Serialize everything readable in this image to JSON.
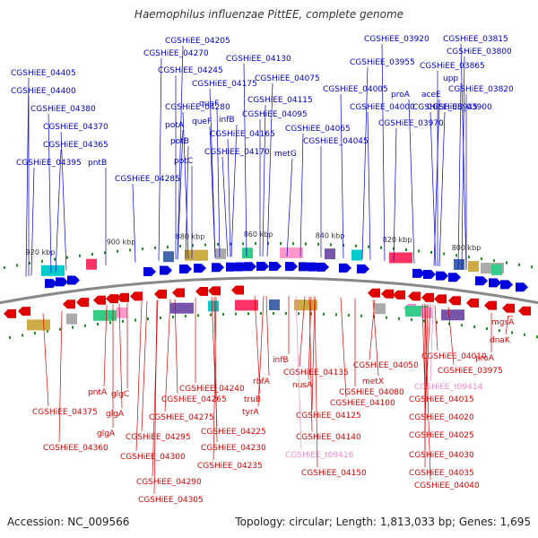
{
  "title": "Haemophilus influenzae PittEE, complete genome",
  "footer": {
    "accession": "Accession: NC_009566",
    "summary": "Topology: circular; Length: 1,813,033 bp; Genes: 1,695"
  },
  "colors": {
    "forward": "#0000dd",
    "reverse": "#e00000",
    "trna": "#ee88cc",
    "backbone": "#888888",
    "ticks": "#228822"
  },
  "scale_labels": [
    "920 kbp",
    "900 kbp",
    "880 kbp",
    "860 kbp",
    "840 kbp",
    "820 kbp",
    "800 kbp"
  ],
  "forward_labels": [
    "CGSHiEE_04205",
    "CGSHiEE_04270",
    "CGSHiEE_04245",
    "CGSHiEE_04130",
    "CGSHiEE_04175",
    "CGSHiEE_04075",
    "CGSHiEE_04405",
    "CGSHiEE_04400",
    "CGSHiEE_04380",
    "CGSHiEE_04370",
    "CGSHiEE_04365",
    "CGSHiEE_04395",
    "pntB",
    "CGSHiEE_04285",
    "CGSHiEE_04280",
    "potA",
    "potB",
    "potC",
    "queF",
    "queF",
    "infB",
    "CGSHiEE_04115",
    "CGSHiEE_04095",
    "CGSHiEE_04165",
    "CGSHiEE_04170",
    "metG",
    "CGSHiEE_04065",
    "CGSHiEE_04045",
    "CGSHiEE_03920",
    "CGSHiEE_03815",
    "CGSHiEE_03955",
    "CGSHiEE_03800",
    "CGSHiEE_03865",
    "CGSHiEE_04005",
    "proA",
    "aceE",
    "upp",
    "CGSHiEE_03820",
    "CGSHiEE_04000",
    "CGSHiEE_03945",
    "CGSHiEE_03900",
    "CGSHiEE_03970"
  ],
  "reverse_labels": [
    "mgsA",
    "dnaK",
    "proA",
    "CGSHiEE_04010",
    "CGSHiEE_03975",
    "CGSHiEE_04050",
    "CGSHiEE_t09414",
    "infB",
    "rbfA",
    "metX",
    "CGSHiEE_04135",
    "nusA",
    "CGSHiEE_04080",
    "CGSHiEE_04015",
    "CGSHiEE_04100",
    "CGSHiEE_04020",
    "CGSHiEE_04125",
    "CGSHiEE_04240",
    "CGSHiEE_04265",
    "truB",
    "tyrA",
    "pntA",
    "glgC",
    "glgA",
    "CGSHiEE_04375",
    "CGSHiEE_04275",
    "CGSHiEE_04025",
    "glgA",
    "CGSHiEE_04140",
    "CGSHiEE_04225",
    "CGSHiEE_04295",
    "CGSHiEE_04360",
    "CGSHiEE_04030",
    "CGSHiEE_04230",
    "CGSHiEE_t09416",
    "CGSHiEE_04300",
    "CGSHiEE_04235",
    "CGSHiEE_04035",
    "CGSHiEE_04150",
    "CGSHiEE_04040",
    "CGSHiEE_04290",
    "CGSHiEE_04305"
  ]
}
